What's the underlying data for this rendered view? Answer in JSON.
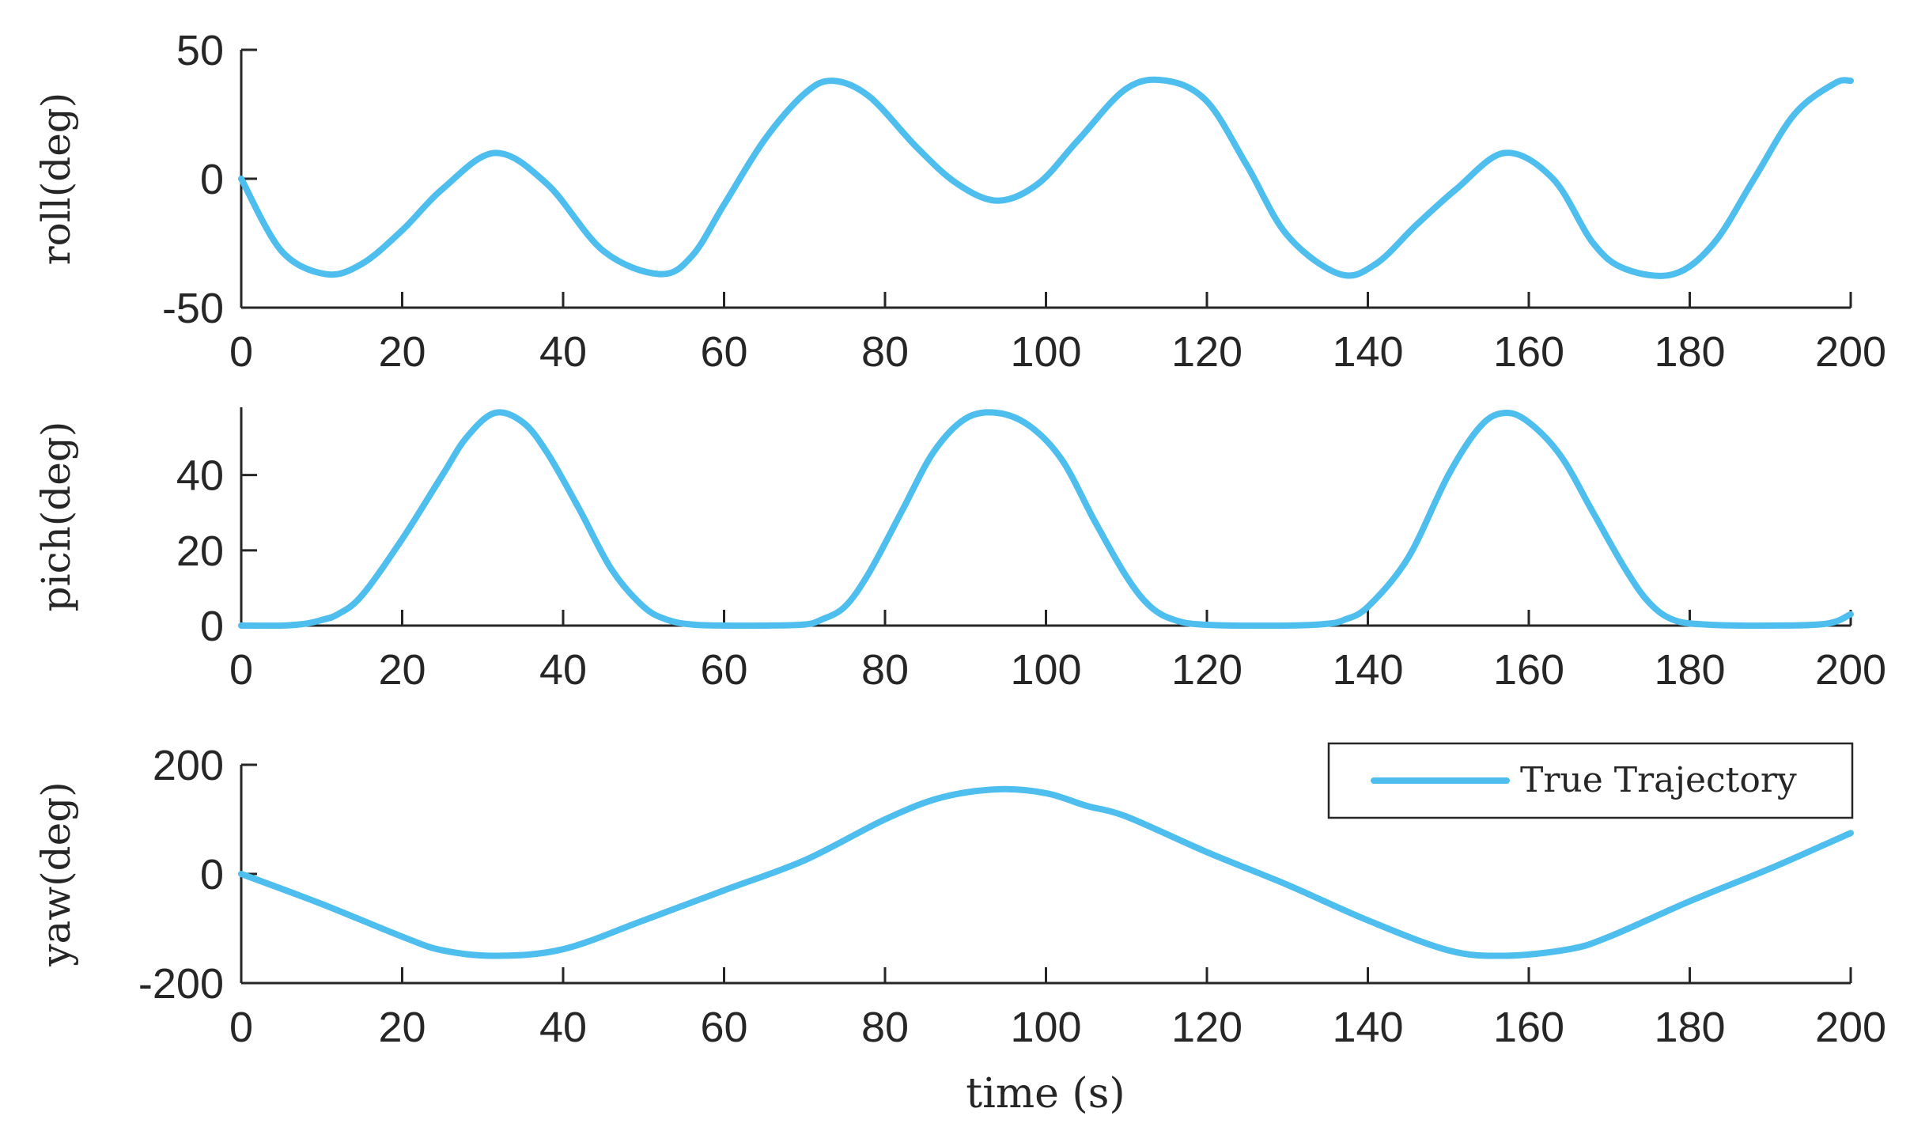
{
  "chart_data": [
    {
      "type": "line",
      "ylabel": "roll(deg)",
      "xlim": [
        0,
        200
      ],
      "ylim": [
        -50,
        50
      ],
      "xticks": [
        0,
        20,
        40,
        60,
        80,
        100,
        120,
        140,
        160,
        180,
        200
      ],
      "yticks": [
        -50,
        0,
        50
      ],
      "series": [
        {
          "color": "#4DBEEE",
          "x": [
            0,
            5,
            10.5,
            15,
            20,
            25,
            31.5,
            38,
            45,
            52,
            56,
            60,
            65,
            70,
            73.5,
            78,
            84,
            89,
            94,
            99,
            104,
            110,
            115,
            120,
            125,
            130,
            136.5,
            141,
            146,
            151,
            157,
            163,
            168,
            172,
            178,
            183,
            188,
            193,
            198,
            200
          ],
          "y": [
            0,
            -28,
            -37,
            -33,
            -20,
            -4,
            10,
            -2,
            -28,
            -37,
            -30,
            -10,
            15,
            33,
            38,
            32,
            12,
            -2,
            -8.5,
            -2,
            15,
            35,
            38,
            30,
            5,
            -22,
            -37,
            -33,
            -18,
            -4,
            10,
            0,
            -25,
            -35,
            -37,
            -25,
            0,
            25,
            37,
            38
          ]
        }
      ]
    },
    {
      "type": "line",
      "ylabel": "pich(deg)",
      "xlim": [
        0,
        200
      ],
      "ylim": [
        0,
        58
      ],
      "xticks": [
        0,
        20,
        40,
        60,
        80,
        100,
        120,
        140,
        160,
        180,
        200
      ],
      "yticks": [
        0,
        20,
        40
      ],
      "series": [
        {
          "color": "#4DBEEE",
          "x": [
            0,
            5,
            8,
            10,
            12,
            15,
            20,
            25,
            28,
            31.5,
            35,
            38,
            42,
            46,
            50,
            53,
            56,
            60,
            65,
            70,
            72,
            75,
            78,
            82,
            86,
            90,
            94,
            98,
            102,
            106,
            110,
            113,
            116,
            120,
            130,
            135,
            137,
            140,
            145,
            150,
            154,
            157,
            160,
            164,
            168,
            172,
            175,
            178,
            182,
            190,
            197,
            200
          ],
          "y": [
            0,
            0,
            0.5,
            1.5,
            3,
            8,
            23,
            40,
            50,
            56.5,
            54,
            46,
            31,
            15,
            5,
            1.5,
            0.3,
            0,
            0,
            0.3,
            1.5,
            5,
            14,
            30,
            46,
            55,
            56.5,
            53,
            44,
            28,
            13,
            5,
            1.5,
            0.2,
            0,
            0.5,
            1.5,
            5,
            18,
            40,
            53,
            56.5,
            54,
            45,
            30,
            15,
            6,
            1.5,
            0.3,
            0,
            0.5,
            3
          ]
        }
      ]
    },
    {
      "type": "line",
      "ylabel": "yaw(deg)",
      "xlabel": "time (s)",
      "xlim": [
        0,
        200
      ],
      "ylim": [
        -200,
        200
      ],
      "xticks": [
        0,
        20,
        40,
        60,
        80,
        100,
        120,
        140,
        160,
        180,
        200
      ],
      "yticks": [
        -200,
        0,
        200
      ],
      "legend_position": "top-right",
      "series": [
        {
          "name": "True Trajectory",
          "color": "#4DBEEE",
          "x": [
            0,
            10,
            20,
            25,
            31.5,
            40,
            50,
            60,
            70,
            80,
            87,
            94,
            100,
            105,
            110,
            120,
            130,
            140,
            150,
            157,
            165,
            170,
            180,
            190,
            200
          ],
          "y": [
            0,
            -55,
            -115,
            -140,
            -150,
            -138,
            -85,
            -30,
            25,
            100,
            140,
            155,
            148,
            125,
            105,
            40,
            -20,
            -85,
            -140,
            -150,
            -138,
            -115,
            -50,
            10,
            75
          ]
        }
      ]
    }
  ]
}
